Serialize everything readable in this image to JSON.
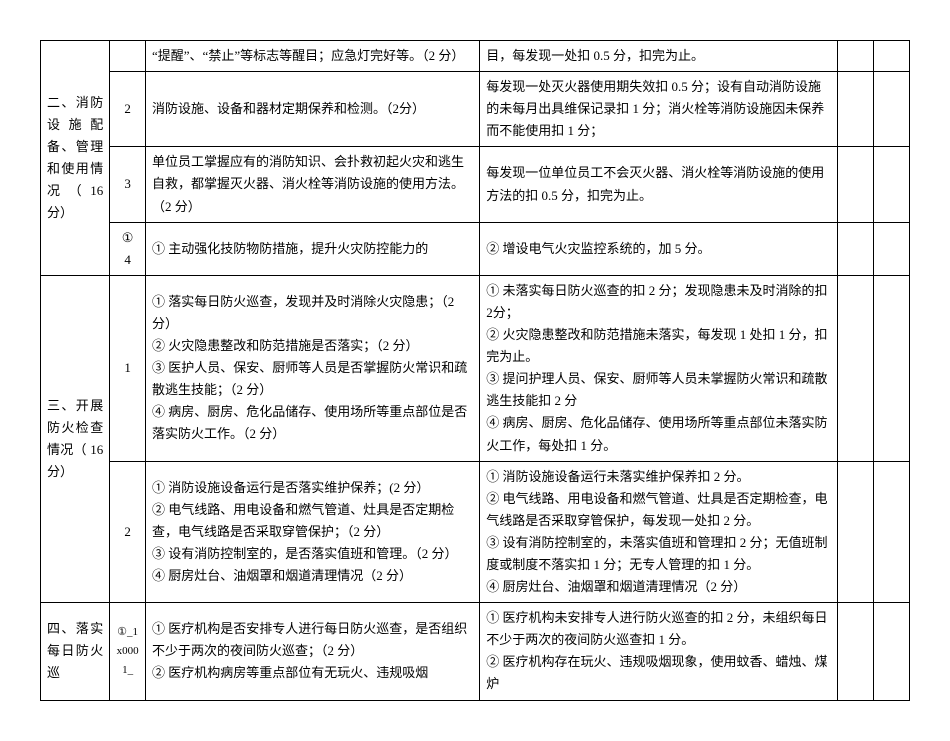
{
  "sections": {
    "s2": {
      "category": "二、消防设施配备、管理和使用情况（16分）",
      "rows": [
        {
          "idx": "",
          "std": "“提醒”、“禁止”等标志等醒目；应急灯完好等。（2 分）",
          "ded": "目，每发现一处扣 0.5 分，扣完为止。"
        },
        {
          "idx": "2",
          "std": "消防设施、设备和器材定期保养和检测。（2分）",
          "ded": "每发现一处灭火器使用期失效扣 0.5 分；设有自动消防设施的未每月出具维保记录扣 1 分；消火栓等消防设施因未保养而不能使用扣 1 分；"
        },
        {
          "idx": "3",
          "std": "单位员工掌握应有的消防知识、会扑救初起火灾和逃生自救，都掌握灭火器、消火栓等消防设施的使用方法。（2 分）",
          "ded": "每发现一位单位员工不会灭火器、消火栓等消防设施的使用方法的扣 0.5 分，扣完为止。"
        },
        {
          "idx": "4",
          "circ": "①",
          "std": "① 主动强化技防物防措施，提升火灾防控能力的",
          "ded": "② 增设电气火灾监控系统的，加 5 分。"
        }
      ]
    },
    "s3": {
      "category": "三、开展防火检查情况（  16分）",
      "rows": [
        {
          "idx": "1",
          "std": "① 落实每日防火巡查，发现并及时消除火灾隐患；（2 分）\n② 火灾隐患整改和防范措施是否落实；（2 分）\n③ 医护人员、保安、厨师等人员是否掌握防火常识和疏散逃生技能；（2 分）\n④ 病房、厨房、危化品储存、使用场所等重点部位是否落实防火工作。（2 分）",
          "ded": "① 未落实每日防火巡查的扣 2 分；发现隐患未及时消除的扣 2分；\n② 火灾隐患整改和防范措施未落实，每发现 1 处扣 1 分，扣完为止。\n③ 提问护理人员、保安、厨师等人员未掌握防火常识和疏散逃生技能扣 2 分\n④ 病房、厨房、危化品储存、使用场所等重点部位未落实防火工作，每处扣 1 分。"
        },
        {
          "idx": "2",
          "std": "① 消防设施设备运行是否落实维护保养；(2 分）\n② 电气线路、用电设备和燃气管道、灶具是否定期检查，电气线路是否采取穿管保护；（2 分）\n③ 设有消防控制室的，是否落实值班和管理。（2 分）\n④ 厨房灶台、油烟罩和烟道清理情况（2 分）",
          "ded": "① 消防设施设备运行未落实维护保养扣 2 分。\n② 电气线路、用电设备和燃气管道、灶具是否定期检查，电气线路是否采取穿管保护，每发现一处扣 2 分。\n③ 设有消防控制室的，未落实值班和管理扣 2 分；无值班制度或制度不落实扣 1 分；无专人管理的扣 1 分。\n④ 厨房灶台、油烟罩和烟道清理情况（2 分）"
        }
      ]
    },
    "s4": {
      "category": "四、落实每日防火巡",
      "rows": [
        {
          "idx": "①_1x0001_",
          "std": "① 医疗机构是否安排专人进行每日防火巡查，是否组织不少于两次的夜间防火巡查；（2 分）\n② 医疗机构病房等重点部位有无玩火、违规吸烟",
          "ded": "① 医疗机构未安排专人进行防火巡查的扣 2 分，未组织每日不少于两次的夜间防火巡查扣 1 分。\n② 医疗机构存在玩火、违规吸烟现象，使用蚊香、蜡烛、煤炉"
        }
      ]
    }
  }
}
